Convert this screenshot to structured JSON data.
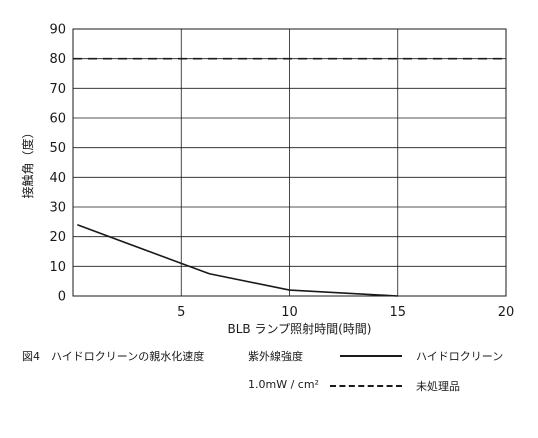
{
  "chart_data": {
    "type": "line",
    "xlabel": "BLB ランプ照射時間(時間)",
    "ylabel": "接触角（度）",
    "xlim": [
      0,
      20
    ],
    "ylim": [
      0,
      90
    ],
    "xticks": [
      5,
      10,
      15,
      20
    ],
    "yticks": [
      0,
      10,
      20,
      30,
      40,
      50,
      60,
      70,
      80,
      90
    ],
    "grid": true,
    "series": [
      {
        "name": "ハイドロクリーン",
        "style": "solid",
        "color": "#1a1a1a",
        "x": [
          0.2,
          5,
          6.3,
          10,
          15
        ],
        "y": [
          24,
          11,
          7.5,
          2,
          0
        ]
      },
      {
        "name": "未処理品",
        "style": "dashed",
        "color": "#1a1a1a",
        "x": [
          0,
          20
        ],
        "y": [
          80,
          80
        ]
      }
    ]
  },
  "caption": {
    "figure_label": "図4　ハイドロクリーンの親水化速度",
    "condition_label": "紫外線強度",
    "condition_value": "1.0mW / cm²"
  }
}
